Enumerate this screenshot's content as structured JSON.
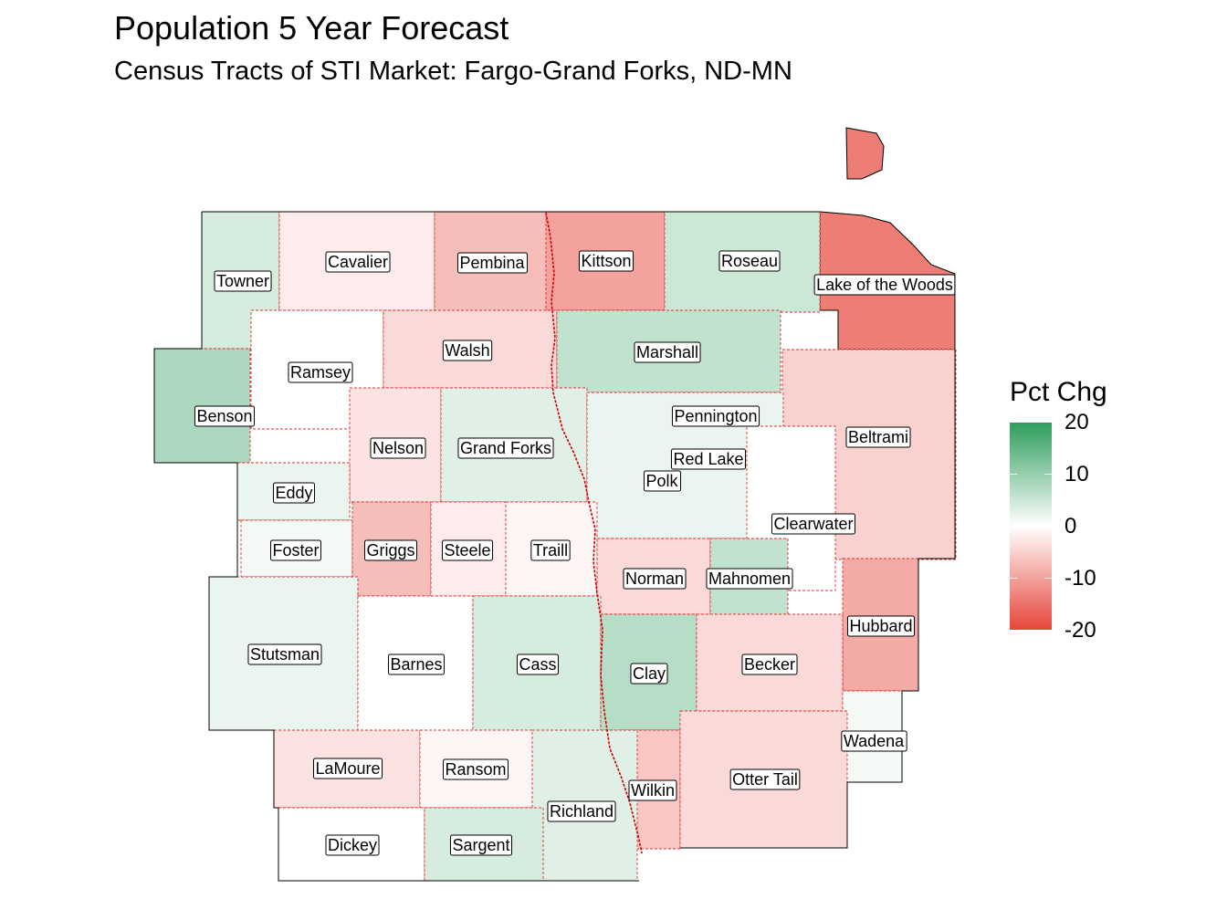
{
  "title": "Population 5 Year Forecast",
  "subtitle": "Census Tracts of STI Market: Fargo-Grand Forks, ND-MN",
  "legend": {
    "title": "Pct Chg",
    "ticks": [
      "20",
      "10",
      "0",
      "-10",
      "-20"
    ],
    "colors": {
      "high": "#2e9e5c",
      "mid": "#ffffff",
      "low": "#e6453a"
    }
  },
  "counties": [
    {
      "name": "Towner",
      "pct": 4
    },
    {
      "name": "Cavalier",
      "pct": -2
    },
    {
      "name": "Pembina",
      "pct": -7
    },
    {
      "name": "Kittson",
      "pct": -10
    },
    {
      "name": "Roseau",
      "pct": 5
    },
    {
      "name": "Lake of the Woods",
      "pct": -14
    },
    {
      "name": "Ramsey",
      "pct": 0
    },
    {
      "name": "Walsh",
      "pct": -4
    },
    {
      "name": "Marshall",
      "pct": 6
    },
    {
      "name": "Benson",
      "pct": 8
    },
    {
      "name": "Nelson",
      "pct": -3
    },
    {
      "name": "Grand Forks",
      "pct": 3
    },
    {
      "name": "Pennington",
      "pct": -5
    },
    {
      "name": "Beltrami",
      "pct": -5
    },
    {
      "name": "Red Lake",
      "pct": -1
    },
    {
      "name": "Polk",
      "pct": 2
    },
    {
      "name": "Eddy",
      "pct": 2
    },
    {
      "name": "Clearwater",
      "pct": 0
    },
    {
      "name": "Foster",
      "pct": 1
    },
    {
      "name": "Griggs",
      "pct": -7
    },
    {
      "name": "Steele",
      "pct": -2
    },
    {
      "name": "Traill",
      "pct": -1
    },
    {
      "name": "Norman",
      "pct": -4
    },
    {
      "name": "Mahnomen",
      "pct": 6
    },
    {
      "name": "Hubbard",
      "pct": -9
    },
    {
      "name": "Stutsman",
      "pct": 2
    },
    {
      "name": "Barnes",
      "pct": 0
    },
    {
      "name": "Cass",
      "pct": 4
    },
    {
      "name": "Clay",
      "pct": 7
    },
    {
      "name": "Becker",
      "pct": -4
    },
    {
      "name": "Wadena",
      "pct": 1
    },
    {
      "name": "LaMoure",
      "pct": -3
    },
    {
      "name": "Ransom",
      "pct": -1
    },
    {
      "name": "Wilkin",
      "pct": -6
    },
    {
      "name": "Otter Tail",
      "pct": -4
    },
    {
      "name": "Richland",
      "pct": 3
    },
    {
      "name": "Dickey",
      "pct": 0
    },
    {
      "name": "Sargent",
      "pct": 4
    }
  ]
}
